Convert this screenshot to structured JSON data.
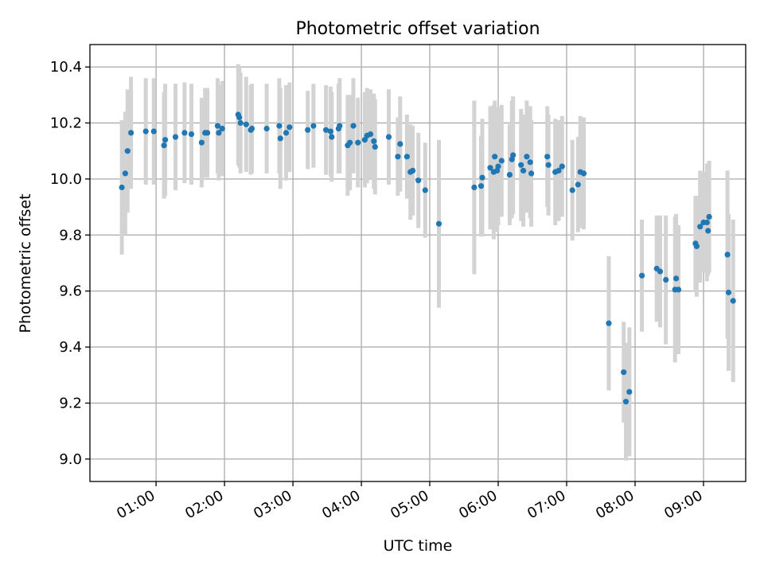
{
  "chart_data": {
    "type": "scatter",
    "title": "Photometric offset variation",
    "xlabel": "UTC time",
    "ylabel": "Photometric offset",
    "x_unit": "UTC time (HH:MM)",
    "xlim": [
      "00:02",
      "09:37"
    ],
    "ylim": [
      8.92,
      10.48
    ],
    "x_ticks": [
      "01:00",
      "02:00",
      "03:00",
      "04:00",
      "05:00",
      "06:00",
      "07:00",
      "08:00",
      "09:00"
    ],
    "y_ticks": [
      9.0,
      9.2,
      9.4,
      9.6,
      9.8,
      10.0,
      10.2,
      10.4
    ],
    "grid": true,
    "marker_color": "#1f77b4",
    "errorbar_color": "#d3d3d3",
    "points": [
      {
        "t": "00:30",
        "y": 9.97,
        "err": 0.24
      },
      {
        "t": "00:33",
        "y": 10.02,
        "err": 0.22
      },
      {
        "t": "00:35",
        "y": 10.1,
        "err": 0.22
      },
      {
        "t": "00:38",
        "y": 10.165,
        "err": 0.2
      },
      {
        "t": "00:51",
        "y": 10.17,
        "err": 0.19
      },
      {
        "t": "00:58",
        "y": 10.17,
        "err": 0.19
      },
      {
        "t": "01:07",
        "y": 10.12,
        "err": 0.19
      },
      {
        "t": "01:08",
        "y": 10.14,
        "err": 0.2
      },
      {
        "t": "01:17",
        "y": 10.15,
        "err": 0.19
      },
      {
        "t": "01:25",
        "y": 10.165,
        "err": 0.18
      },
      {
        "t": "01:31",
        "y": 10.16,
        "err": 0.18
      },
      {
        "t": "01:40",
        "y": 10.13,
        "err": 0.16
      },
      {
        "t": "01:43",
        "y": 10.165,
        "err": 0.16
      },
      {
        "t": "01:45",
        "y": 10.165,
        "err": 0.16
      },
      {
        "t": "01:54",
        "y": 10.19,
        "err": 0.17
      },
      {
        "t": "01:55",
        "y": 10.165,
        "err": 0.17
      },
      {
        "t": "01:58",
        "y": 10.18,
        "err": 0.17
      },
      {
        "t": "02:12",
        "y": 10.23,
        "err": 0.18
      },
      {
        "t": "02:13",
        "y": 10.22,
        "err": 0.18
      },
      {
        "t": "02:14",
        "y": 10.2,
        "err": 0.18
      },
      {
        "t": "02:19",
        "y": 10.195,
        "err": 0.17
      },
      {
        "t": "02:23",
        "y": 10.175,
        "err": 0.16
      },
      {
        "t": "02:24",
        "y": 10.18,
        "err": 0.16
      },
      {
        "t": "02:37",
        "y": 10.18,
        "err": 0.16
      },
      {
        "t": "02:48",
        "y": 10.19,
        "err": 0.17
      },
      {
        "t": "02:49",
        "y": 10.145,
        "err": 0.18
      },
      {
        "t": "02:54",
        "y": 10.165,
        "err": 0.17
      },
      {
        "t": "02:57",
        "y": 10.185,
        "err": 0.16
      },
      {
        "t": "03:13",
        "y": 10.175,
        "err": 0.14
      },
      {
        "t": "03:18",
        "y": 10.19,
        "err": 0.15
      },
      {
        "t": "03:29",
        "y": 10.175,
        "err": 0.16
      },
      {
        "t": "03:33",
        "y": 10.17,
        "err": 0.16
      },
      {
        "t": "03:34",
        "y": 10.15,
        "err": 0.16
      },
      {
        "t": "03:40",
        "y": 10.18,
        "err": 0.16
      },
      {
        "t": "03:41",
        "y": 10.19,
        "err": 0.17
      },
      {
        "t": "03:48",
        "y": 10.12,
        "err": 0.18
      },
      {
        "t": "03:50",
        "y": 10.13,
        "err": 0.17
      },
      {
        "t": "03:53",
        "y": 10.19,
        "err": 0.17
      },
      {
        "t": "03:57",
        "y": 10.13,
        "err": 0.16
      },
      {
        "t": "04:03",
        "y": 10.14,
        "err": 0.17
      },
      {
        "t": "04:05",
        "y": 10.155,
        "err": 0.17
      },
      {
        "t": "04:08",
        "y": 10.16,
        "err": 0.16
      },
      {
        "t": "04:11",
        "y": 10.135,
        "err": 0.17
      },
      {
        "t": "04:12",
        "y": 10.115,
        "err": 0.17
      },
      {
        "t": "04:24",
        "y": 10.15,
        "err": 0.17
      },
      {
        "t": "04:32",
        "y": 10.08,
        "err": 0.14
      },
      {
        "t": "04:34",
        "y": 10.125,
        "err": 0.17
      },
      {
        "t": "04:40",
        "y": 10.08,
        "err": 0.15
      },
      {
        "t": "04:43",
        "y": 10.025,
        "err": 0.17
      },
      {
        "t": "04:45",
        "y": 10.03,
        "err": 0.16
      },
      {
        "t": "04:50",
        "y": 9.995,
        "err": 0.17
      },
      {
        "t": "04:56",
        "y": 9.96,
        "err": 0.17
      },
      {
        "t": "05:08",
        "y": 9.84,
        "err": 0.3
      },
      {
        "t": "05:39",
        "y": 9.97,
        "err": 0.31
      },
      {
        "t": "05:45",
        "y": 9.975,
        "err": 0.18
      },
      {
        "t": "05:46",
        "y": 10.005,
        "err": 0.21
      },
      {
        "t": "05:53",
        "y": 10.04,
        "err": 0.22
      },
      {
        "t": "05:56",
        "y": 10.025,
        "err": 0.24
      },
      {
        "t": "05:57",
        "y": 10.08,
        "err": 0.2
      },
      {
        "t": "05:59",
        "y": 10.03,
        "err": 0.22
      },
      {
        "t": "06:00",
        "y": 10.045,
        "err": 0.21
      },
      {
        "t": "06:03",
        "y": 10.065,
        "err": 0.2
      },
      {
        "t": "06:10",
        "y": 10.015,
        "err": 0.18
      },
      {
        "t": "06:12",
        "y": 10.07,
        "err": 0.21
      },
      {
        "t": "06:13",
        "y": 10.085,
        "err": 0.21
      },
      {
        "t": "06:20",
        "y": 10.05,
        "err": 0.2
      },
      {
        "t": "06:22",
        "y": 10.03,
        "err": 0.2
      },
      {
        "t": "06:25",
        "y": 10.08,
        "err": 0.2
      },
      {
        "t": "06:28",
        "y": 10.06,
        "err": 0.2
      },
      {
        "t": "06:29",
        "y": 10.02,
        "err": 0.19
      },
      {
        "t": "06:43",
        "y": 10.08,
        "err": 0.18
      },
      {
        "t": "06:44",
        "y": 10.05,
        "err": 0.18
      },
      {
        "t": "06:50",
        "y": 10.025,
        "err": 0.19
      },
      {
        "t": "06:53",
        "y": 10.03,
        "err": 0.18
      },
      {
        "t": "06:56",
        "y": 10.045,
        "err": 0.18
      },
      {
        "t": "07:05",
        "y": 9.96,
        "err": 0.18
      },
      {
        "t": "07:10",
        "y": 9.98,
        "err": 0.17
      },
      {
        "t": "07:12",
        "y": 10.025,
        "err": 0.2
      },
      {
        "t": "07:15",
        "y": 10.02,
        "err": 0.2
      },
      {
        "t": "07:37",
        "y": 9.485,
        "err": 0.24
      },
      {
        "t": "07:50",
        "y": 9.31,
        "err": 0.18
      },
      {
        "t": "07:52",
        "y": 9.205,
        "err": 0.21
      },
      {
        "t": "07:55",
        "y": 9.24,
        "err": 0.23
      },
      {
        "t": "08:06",
        "y": 9.655,
        "err": 0.2
      },
      {
        "t": "08:19",
        "y": 9.68,
        "err": 0.19
      },
      {
        "t": "08:22",
        "y": 9.67,
        "err": 0.2
      },
      {
        "t": "08:27",
        "y": 9.64,
        "err": 0.23
      },
      {
        "t": "08:35",
        "y": 9.605,
        "err": 0.26
      },
      {
        "t": "08:36",
        "y": 9.645,
        "err": 0.23
      },
      {
        "t": "08:38",
        "y": 9.605,
        "err": 0.23
      },
      {
        "t": "08:53",
        "y": 9.77,
        "err": 0.17
      },
      {
        "t": "08:54",
        "y": 9.76,
        "err": 0.18
      },
      {
        "t": "08:57",
        "y": 9.83,
        "err": 0.2
      },
      {
        "t": "09:00",
        "y": 9.845,
        "err": 0.18
      },
      {
        "t": "09:03",
        "y": 9.845,
        "err": 0.21
      },
      {
        "t": "09:04",
        "y": 9.815,
        "err": 0.16
      },
      {
        "t": "09:05",
        "y": 9.865,
        "err": 0.2
      },
      {
        "t": "09:21",
        "y": 9.73,
        "err": 0.3
      },
      {
        "t": "09:22",
        "y": 9.595,
        "err": 0.28
      },
      {
        "t": "09:26",
        "y": 9.565,
        "err": 0.29
      }
    ]
  }
}
